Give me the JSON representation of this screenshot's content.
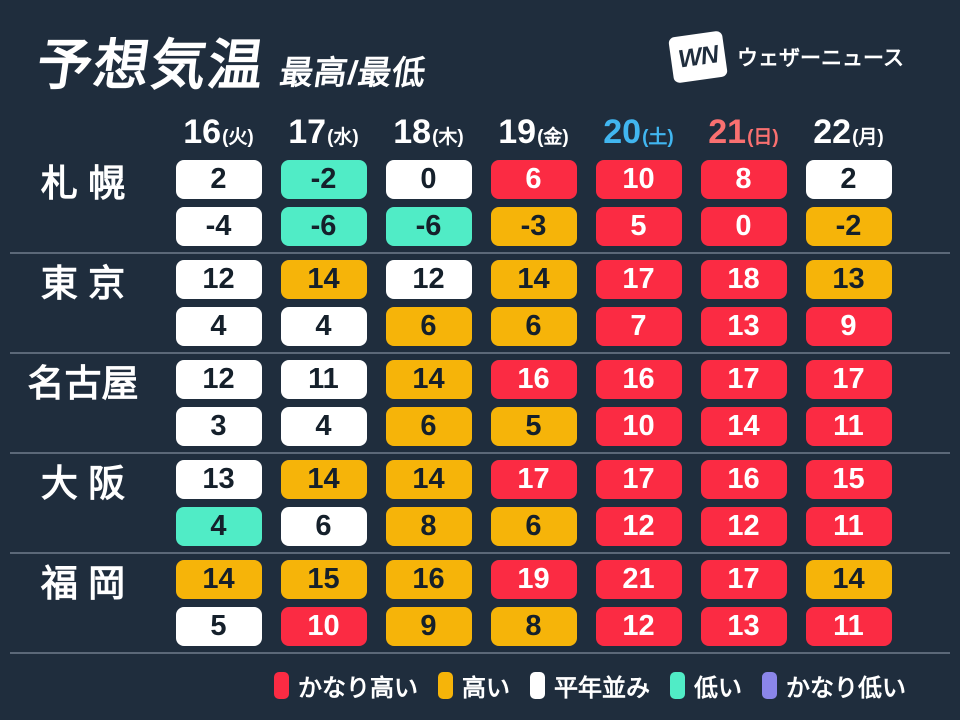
{
  "header": {
    "title": "予想気温",
    "subtitle": "最高/最低",
    "logo_mark": "WN",
    "logo_text": "ウェザーニュース"
  },
  "columns": [
    {
      "day": "16",
      "dow": "(火)",
      "color": "#ffffff"
    },
    {
      "day": "17",
      "dow": "(水)",
      "color": "#ffffff"
    },
    {
      "day": "18",
      "dow": "(木)",
      "color": "#ffffff"
    },
    {
      "day": "19",
      "dow": "(金)",
      "color": "#ffffff"
    },
    {
      "day": "20",
      "dow": "(土)",
      "color": "#41b6f0"
    },
    {
      "day": "21",
      "dow": "(日)",
      "color": "#f97070"
    },
    {
      "day": "22",
      "dow": "(月)",
      "color": "#ffffff"
    }
  ],
  "categories": {
    "much-higher": {
      "label": "かなり高い",
      "bg": "#fb2b43",
      "text": "#ffffff"
    },
    "higher": {
      "label": "高い",
      "bg": "#f6b409",
      "text": "#15202b"
    },
    "normal": {
      "label": "平年並み",
      "bg": "#ffffff",
      "text": "#15202b"
    },
    "lower": {
      "label": "低い",
      "bg": "#50ecc6",
      "text": "#15202b"
    },
    "much-lower": {
      "label": "かなり低い",
      "bg": "#8b86ea",
      "text": "#ffffff"
    }
  },
  "legend_order": [
    "much-higher",
    "higher",
    "normal",
    "lower",
    "much-lower"
  ],
  "cities": [
    {
      "name": "札 幌",
      "high": [
        {
          "v": "2",
          "k": "normal"
        },
        {
          "v": "-2",
          "k": "lower"
        },
        {
          "v": "0",
          "k": "normal"
        },
        {
          "v": "6",
          "k": "much-higher"
        },
        {
          "v": "10",
          "k": "much-higher"
        },
        {
          "v": "8",
          "k": "much-higher"
        },
        {
          "v": "2",
          "k": "normal"
        }
      ],
      "low": [
        {
          "v": "-4",
          "k": "normal"
        },
        {
          "v": "-6",
          "k": "lower"
        },
        {
          "v": "-6",
          "k": "lower"
        },
        {
          "v": "-3",
          "k": "higher"
        },
        {
          "v": "5",
          "k": "much-higher"
        },
        {
          "v": "0",
          "k": "much-higher"
        },
        {
          "v": "-2",
          "k": "higher"
        }
      ]
    },
    {
      "name": "東 京",
      "high": [
        {
          "v": "12",
          "k": "normal"
        },
        {
          "v": "14",
          "k": "higher"
        },
        {
          "v": "12",
          "k": "normal"
        },
        {
          "v": "14",
          "k": "higher"
        },
        {
          "v": "17",
          "k": "much-higher"
        },
        {
          "v": "18",
          "k": "much-higher"
        },
        {
          "v": "13",
          "k": "higher"
        }
      ],
      "low": [
        {
          "v": "4",
          "k": "normal"
        },
        {
          "v": "4",
          "k": "normal"
        },
        {
          "v": "6",
          "k": "higher"
        },
        {
          "v": "6",
          "k": "higher"
        },
        {
          "v": "7",
          "k": "much-higher"
        },
        {
          "v": "13",
          "k": "much-higher"
        },
        {
          "v": "9",
          "k": "much-higher"
        }
      ]
    },
    {
      "name": "名古屋",
      "high": [
        {
          "v": "12",
          "k": "normal"
        },
        {
          "v": "11",
          "k": "normal"
        },
        {
          "v": "14",
          "k": "higher"
        },
        {
          "v": "16",
          "k": "much-higher"
        },
        {
          "v": "16",
          "k": "much-higher"
        },
        {
          "v": "17",
          "k": "much-higher"
        },
        {
          "v": "17",
          "k": "much-higher"
        }
      ],
      "low": [
        {
          "v": "3",
          "k": "normal"
        },
        {
          "v": "4",
          "k": "normal"
        },
        {
          "v": "6",
          "k": "higher"
        },
        {
          "v": "5",
          "k": "higher"
        },
        {
          "v": "10",
          "k": "much-higher"
        },
        {
          "v": "14",
          "k": "much-higher"
        },
        {
          "v": "11",
          "k": "much-higher"
        }
      ]
    },
    {
      "name": "大 阪",
      "high": [
        {
          "v": "13",
          "k": "normal"
        },
        {
          "v": "14",
          "k": "higher"
        },
        {
          "v": "14",
          "k": "higher"
        },
        {
          "v": "17",
          "k": "much-higher"
        },
        {
          "v": "17",
          "k": "much-higher"
        },
        {
          "v": "16",
          "k": "much-higher"
        },
        {
          "v": "15",
          "k": "much-higher"
        }
      ],
      "low": [
        {
          "v": "4",
          "k": "lower"
        },
        {
          "v": "6",
          "k": "normal"
        },
        {
          "v": "8",
          "k": "higher"
        },
        {
          "v": "6",
          "k": "higher"
        },
        {
          "v": "12",
          "k": "much-higher"
        },
        {
          "v": "12",
          "k": "much-higher"
        },
        {
          "v": "11",
          "k": "much-higher"
        }
      ]
    },
    {
      "name": "福 岡",
      "high": [
        {
          "v": "14",
          "k": "higher"
        },
        {
          "v": "15",
          "k": "higher"
        },
        {
          "v": "16",
          "k": "higher"
        },
        {
          "v": "19",
          "k": "much-higher"
        },
        {
          "v": "21",
          "k": "much-higher"
        },
        {
          "v": "17",
          "k": "much-higher"
        },
        {
          "v": "14",
          "k": "higher"
        }
      ],
      "low": [
        {
          "v": "5",
          "k": "normal"
        },
        {
          "v": "10",
          "k": "much-higher"
        },
        {
          "v": "9",
          "k": "higher"
        },
        {
          "v": "8",
          "k": "higher"
        },
        {
          "v": "12",
          "k": "much-higher"
        },
        {
          "v": "13",
          "k": "much-higher"
        },
        {
          "v": "11",
          "k": "much-higher"
        }
      ]
    }
  ],
  "colors": {
    "background": "#1f2d3d",
    "divider": "#5b6878",
    "saturday": "#41b6f0",
    "sunday": "#f97070"
  },
  "chart_data": {
    "type": "table",
    "title": "予想気温 最高/最低",
    "columns": [
      "16(火)",
      "17(水)",
      "18(木)",
      "19(金)",
      "20(土)",
      "21(日)",
      "22(月)"
    ],
    "rows": [
      {
        "city": "札幌",
        "high": [
          2,
          -2,
          0,
          6,
          10,
          8,
          2
        ],
        "low": [
          -4,
          -6,
          -6,
          -3,
          5,
          0,
          -2
        ]
      },
      {
        "city": "東京",
        "high": [
          12,
          14,
          12,
          14,
          17,
          18,
          13
        ],
        "low": [
          4,
          4,
          6,
          6,
          7,
          13,
          9
        ]
      },
      {
        "city": "名古屋",
        "high": [
          12,
          11,
          14,
          16,
          16,
          17,
          17
        ],
        "low": [
          3,
          4,
          6,
          5,
          10,
          14,
          11
        ]
      },
      {
        "city": "大阪",
        "high": [
          13,
          14,
          14,
          17,
          17,
          16,
          15
        ],
        "low": [
          4,
          6,
          8,
          6,
          12,
          12,
          11
        ]
      },
      {
        "city": "福岡",
        "high": [
          14,
          15,
          16,
          19,
          21,
          17,
          14
        ],
        "low": [
          5,
          10,
          9,
          8,
          12,
          13,
          11
        ]
      }
    ],
    "legend": [
      "かなり高い",
      "高い",
      "平年並み",
      "低い",
      "かなり低い"
    ]
  }
}
